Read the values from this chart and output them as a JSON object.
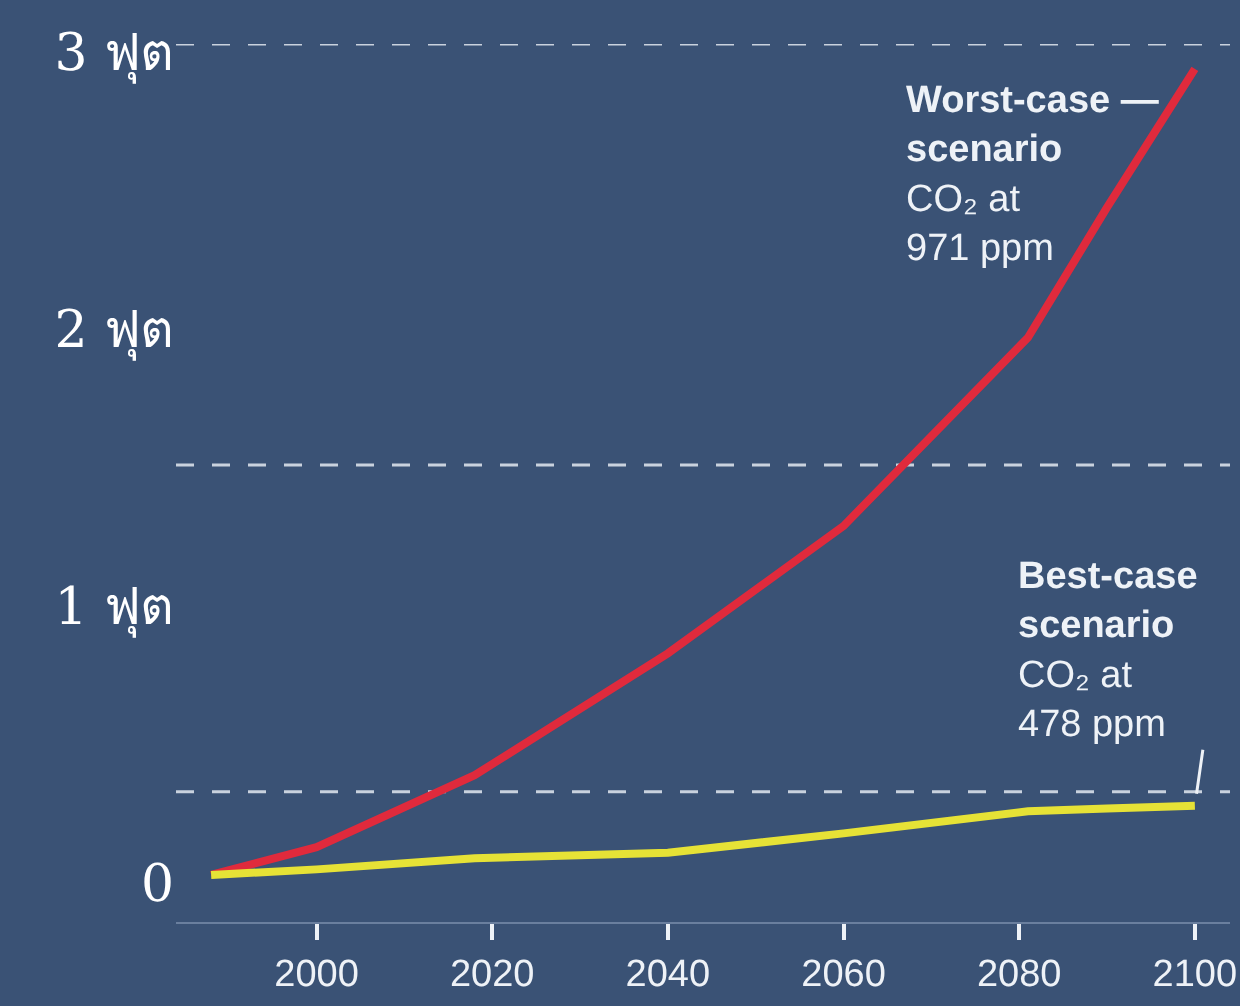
{
  "chart_data": {
    "type": "line",
    "x": [
      1988,
      2000,
      2018,
      2040,
      2060,
      2081,
      2090,
      2100
    ],
    "series": [
      {
        "color": "#e02a3c",
        "values": [
          0,
          0.1,
          0.36,
          0.8,
          1.26,
          1.94,
          2.41,
          2.91
        ]
      },
      {
        "color": "#e6e236",
        "values": [
          0,
          0.02,
          0.06,
          0.08,
          0.15,
          0.23,
          0.24,
          0.25
        ]
      }
    ],
    "xlim": [
      1984,
      2104
    ],
    "xticks": [
      2000,
      2020,
      2040,
      2060,
      2080,
      2100
    ],
    "ylim": [
      -0.17,
      3
    ],
    "yticks": [
      {
        "value": 0,
        "label": "0"
      },
      {
        "value": 1,
        "label": "1 ฟุต"
      },
      {
        "value": 2,
        "label": "2 ฟุต"
      },
      {
        "value": 3,
        "label": "3 ฟุต"
      }
    ],
    "ref_lines": [
      {
        "axis": "y",
        "value": 3,
        "color": "#c9d2de",
        "line_style": "dashed"
      },
      {
        "axis": "y",
        "value": 1.48,
        "color": "#c9d2de",
        "line_style": "dashed"
      },
      {
        "axis": "y",
        "value": 0.3,
        "color": "#c9d2de",
        "line_style": "dashed"
      }
    ],
    "annotations": [
      {
        "text": "Worst-case —\nscenario\nCO₂ at\n971 ppm",
        "x": 2100,
        "y": 2.91
      },
      {
        "text": "Best-case\nscenario\nCO₂ at\n478 ppm",
        "x": 2100,
        "y": 0.25
      }
    ],
    "grid": false,
    "marker": "none",
    "line_style": "solid"
  }
}
